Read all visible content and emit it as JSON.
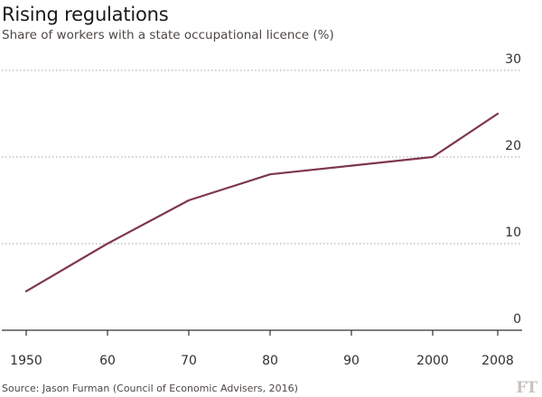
{
  "title": "Rising regulations",
  "subtitle": "Share of workers with a state occupational licence (%)",
  "source": "Source: Jason Furman (Council of Economic Advisers, 2016)",
  "logo": "FT",
  "colors": {
    "line": "#7d3750",
    "grid": "#a7a29d",
    "text": "#33302e",
    "axis": "#33302e"
  },
  "chart_data": {
    "type": "line",
    "title": "Rising regulations",
    "subtitle": "Share of workers with a state occupational licence (%)",
    "xlabel": "",
    "ylabel": "",
    "x": [
      1950,
      1960,
      1970,
      1980,
      1990,
      2000,
      2008
    ],
    "x_tick_labels": [
      "1950",
      "60",
      "70",
      "80",
      "90",
      "2000",
      "2008"
    ],
    "y_ticks": [
      0,
      10,
      20,
      30
    ],
    "y_tick_labels": [
      "0",
      "10",
      "20",
      "30"
    ],
    "ylim": [
      0,
      30
    ],
    "grid": true,
    "y_axis_side": "right",
    "series": [
      {
        "values": [
          4.5,
          10,
          15,
          18,
          19,
          20,
          25
        ]
      }
    ]
  }
}
